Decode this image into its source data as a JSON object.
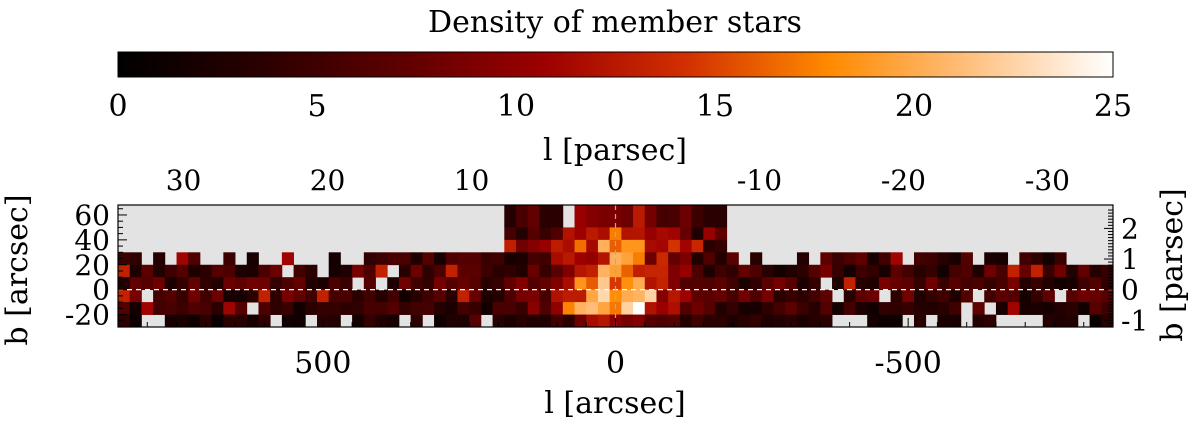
{
  "chart_data": {
    "type": "heatmap",
    "colorbar": {
      "title": "Density of member stars",
      "range": [
        0,
        25
      ],
      "ticks": [
        0,
        5,
        10,
        15,
        20,
        25
      ],
      "colormap": [
        "#000000",
        "#2a0000",
        "#5e0000",
        "#9c0000",
        "#d23000",
        "#ff8a00",
        "#ffc080",
        "#ffffff"
      ]
    },
    "axes": {
      "x_bottom": {
        "label": "l [arcsec]",
        "range": [
          850,
          -850
        ],
        "ticks": [
          500,
          0,
          -500
        ]
      },
      "x_top": {
        "label": "l [parsec]",
        "ticks": [
          30,
          20,
          10,
          0,
          -10,
          -20,
          -30
        ]
      },
      "y_left": {
        "label": "b [arcsec]",
        "range": [
          -30,
          68
        ],
        "ticks": [
          60,
          40,
          20,
          0,
          -20
        ]
      },
      "y_right": {
        "label": "b [parsec]",
        "ticks": [
          2,
          1,
          0,
          -1
        ]
      }
    },
    "no_data_color": "#e3e3e3",
    "reference_lines": [
      {
        "orientation": "horizontal",
        "value": 0,
        "style": "dashed",
        "color": "#ffffff"
      },
      {
        "orientation": "vertical",
        "value": 0,
        "style": "dashed",
        "color": "#aaaaaa"
      }
    ],
    "grid": {
      "bin_x": 20,
      "bin_y": 10,
      "density_by_row": [
        {
          "b_range": [
            50,
            70
          ],
          "l_range": [
            190,
            -190
          ],
          "typical_density": 5,
          "peak_density": 12
        },
        {
          "b_range": [
            40,
            50
          ],
          "l_range": [
            190,
            -190
          ],
          "typical_density": 7,
          "peak_density": 16
        },
        {
          "b_range": [
            30,
            40
          ],
          "l_range": [
            190,
            -190
          ],
          "typical_density": 9,
          "peak_density": 20
        },
        {
          "b_range": [
            20,
            30
          ],
          "l_range": [
            850,
            -850
          ],
          "typical_density": 5,
          "peak_density": 19
        },
        {
          "b_range": [
            10,
            20
          ],
          "l_range": [
            850,
            -850
          ],
          "typical_density": 6,
          "peak_density": 20
        },
        {
          "b_range": [
            0,
            10
          ],
          "l_range": [
            850,
            -850
          ],
          "typical_density": 6,
          "peak_density": 21
        },
        {
          "b_range": [
            -10,
            0
          ],
          "l_range": [
            850,
            -850
          ],
          "typical_density": 6,
          "peak_density": 25
        },
        {
          "b_range": [
            -20,
            -10
          ],
          "l_range": [
            850,
            -850
          ],
          "typical_density": 5,
          "peak_density": 25
        },
        {
          "b_range": [
            -30,
            -20
          ],
          "l_range": [
            850,
            -850
          ],
          "typical_density": 3,
          "peak_density": 12
        }
      ]
    }
  }
}
